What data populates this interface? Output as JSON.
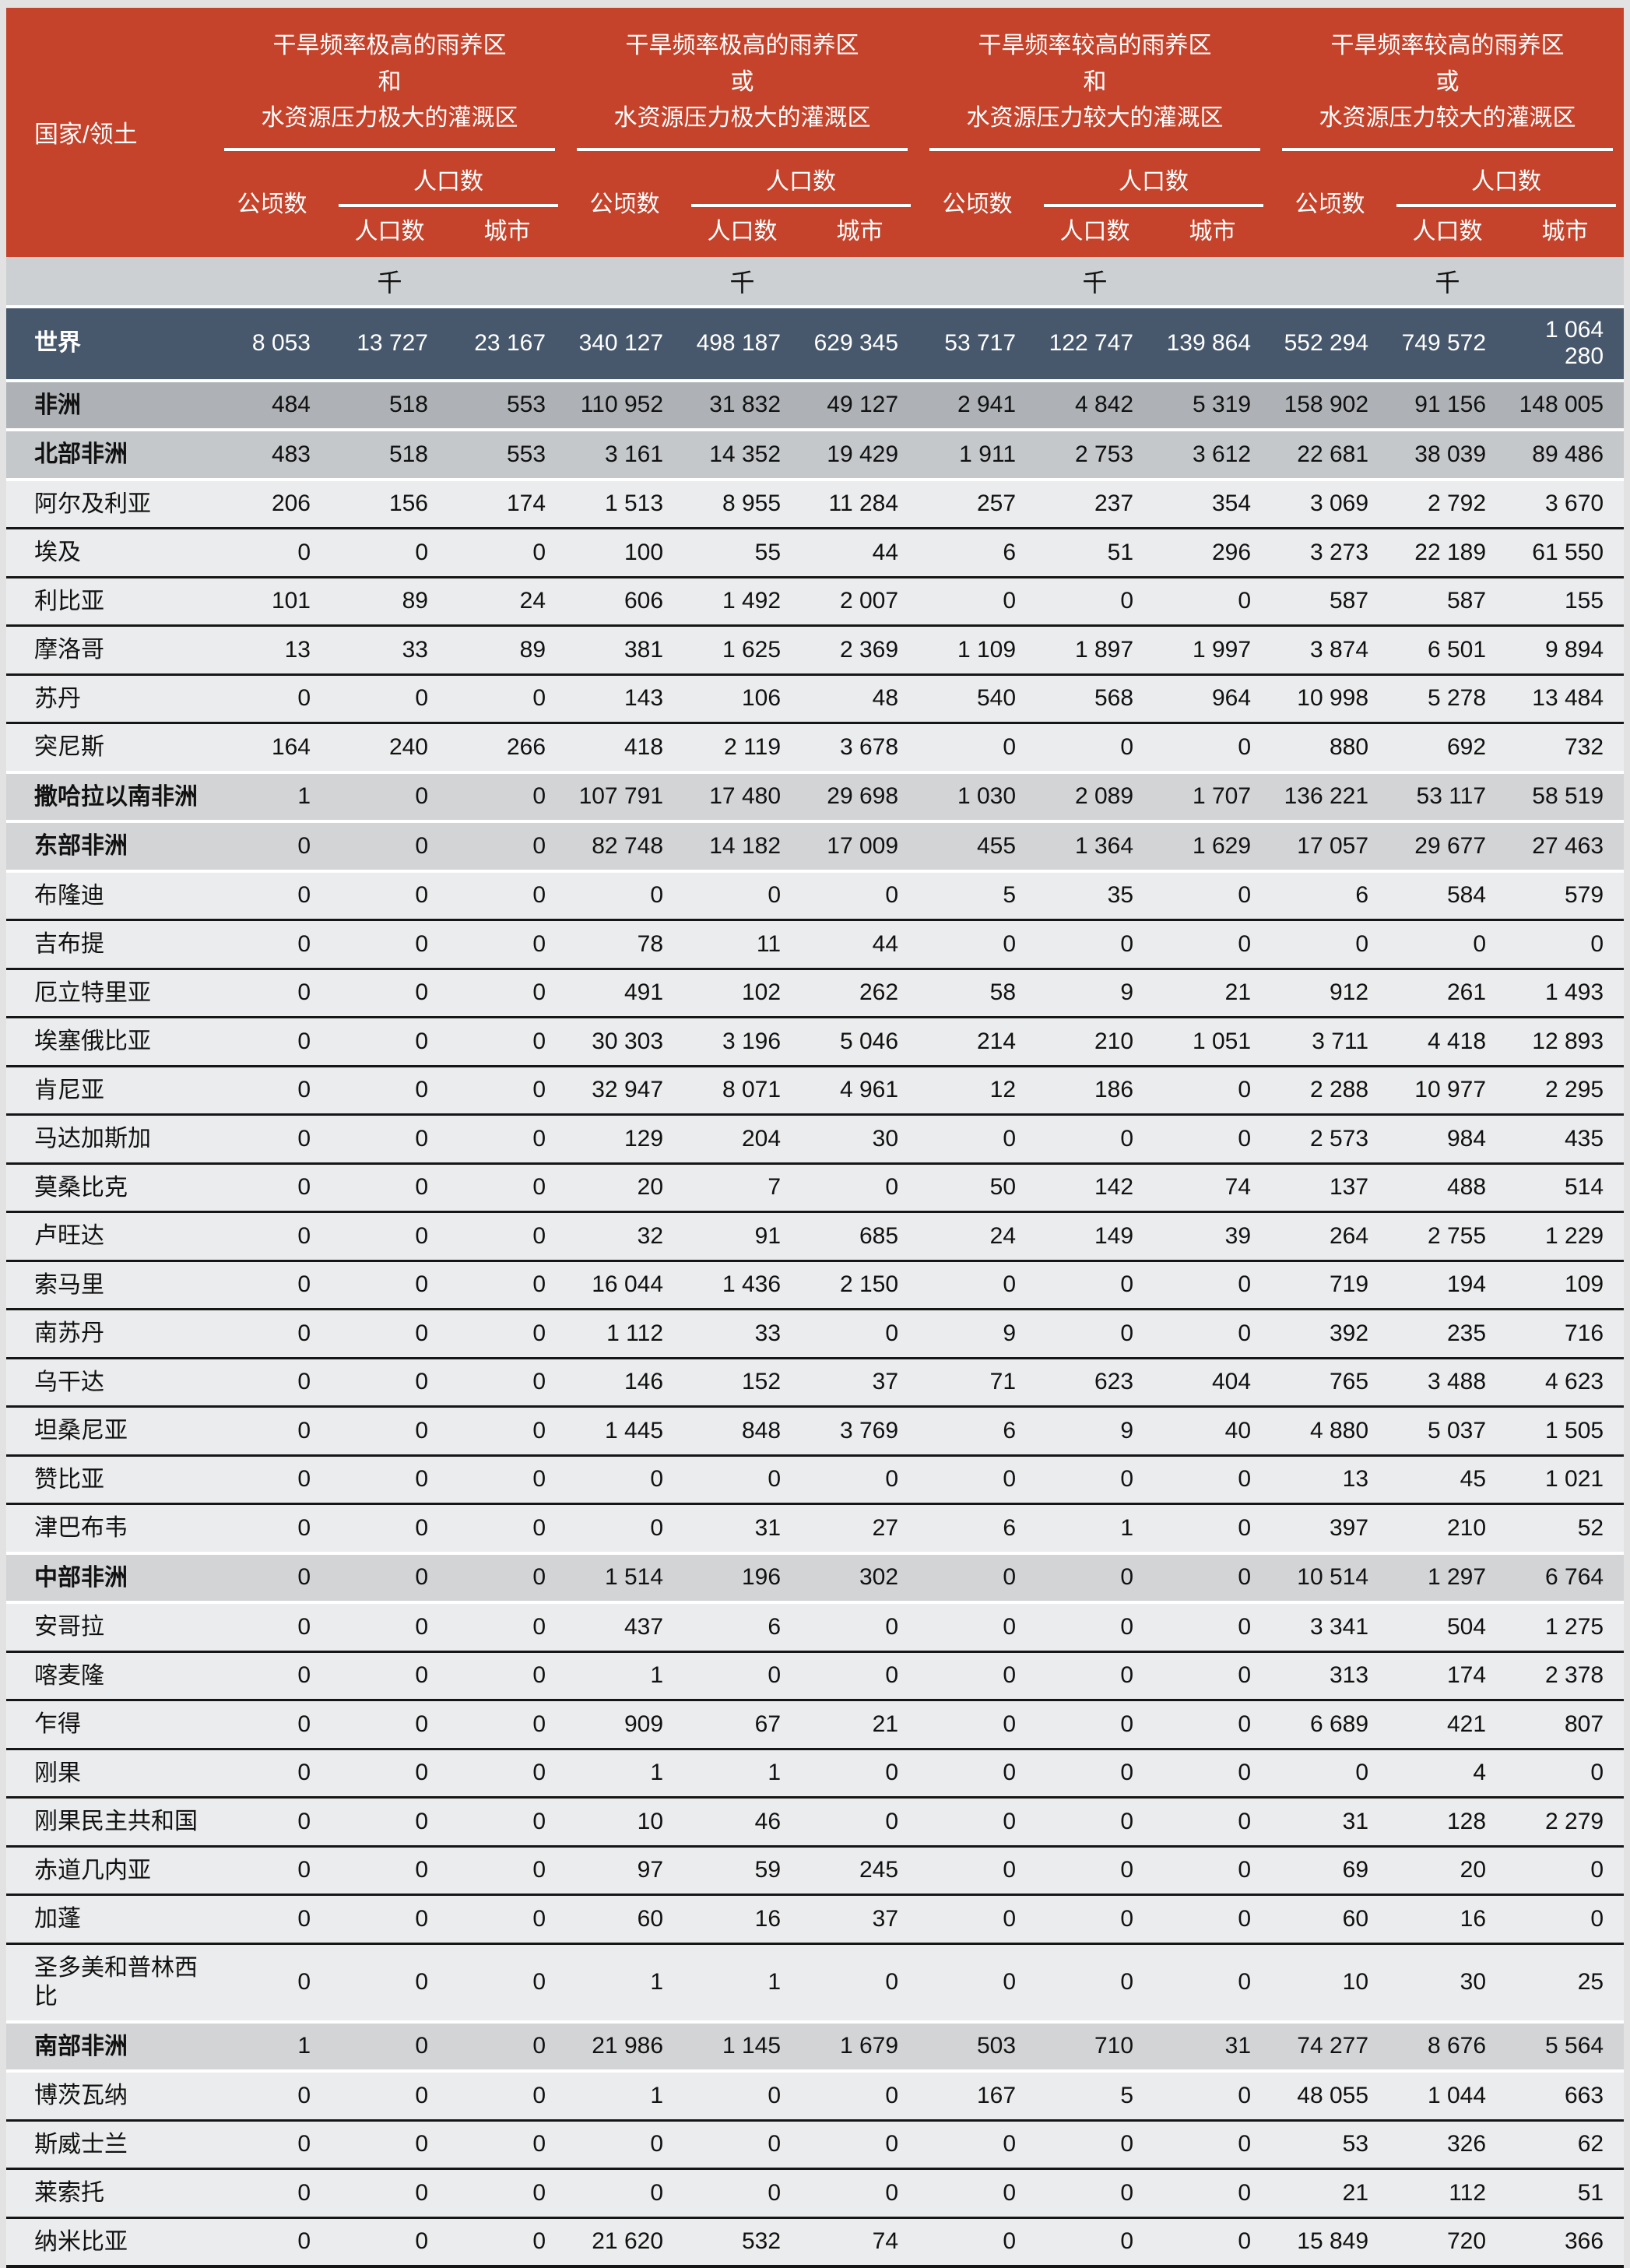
{
  "colors": {
    "header_bg": "#C5432B",
    "header_text": "#ffffff",
    "world_row_bg": "#47586C",
    "continent_row_bg": "#AEB2B6",
    "subcontinent_row_bg": "#C4C8CB",
    "region_row_bg": "#D2D4D6",
    "country_row_bg": "#EBECED",
    "unit_row_bg": "#CDD0D2",
    "rule_color": "#161616",
    "text_color": "#111111",
    "page_bg": "#e2e2e2"
  },
  "table": {
    "row_label_header": "国家/领土",
    "unit": "千",
    "groups": [
      {
        "line1": "干旱频率极高的雨养区",
        "connector": "和",
        "line2": "水资源压力极大的灌溉区"
      },
      {
        "line1": "干旱频率极高的雨养区",
        "connector": "或",
        "line2": "水资源压力极大的灌溉区"
      },
      {
        "line1": "干旱频率较高的雨养区",
        "connector": "和",
        "line2": "水资源压力较大的灌溉区"
      },
      {
        "line1": "干旱频率较高的雨养区",
        "connector": "或",
        "line2": "水资源压力较大的灌溉区"
      }
    ],
    "labels": {
      "hectares": "公顷数",
      "population": "人口数",
      "population_sub": "人口数",
      "urban": "城市"
    },
    "rows": [
      {
        "label": "世界",
        "type": "world",
        "values": [
          "8 053",
          "13 727",
          "23 167",
          "340 127",
          "498 187",
          "629 345",
          "53 717",
          "122 747",
          "139 864",
          "552 294",
          "749 572",
          "1 064 280"
        ]
      },
      {
        "label": "非洲",
        "type": "continent",
        "values": [
          "484",
          "518",
          "553",
          "110 952",
          "31 832",
          "49 127",
          "2 941",
          "4 842",
          "5 319",
          "158 902",
          "91 156",
          "148 005"
        ]
      },
      {
        "label": "北部非洲",
        "type": "subcontinent",
        "values": [
          "483",
          "518",
          "553",
          "3 161",
          "14 352",
          "19 429",
          "1 911",
          "2 753",
          "3 612",
          "22 681",
          "38 039",
          "89 486"
        ]
      },
      {
        "label": "阿尔及利亚",
        "type": "country",
        "values": [
          "206",
          "156",
          "174",
          "1 513",
          "8 955",
          "11 284",
          "257",
          "237",
          "354",
          "3 069",
          "2 792",
          "3 670"
        ]
      },
      {
        "label": "埃及",
        "type": "country",
        "values": [
          "0",
          "0",
          "0",
          "100",
          "55",
          "44",
          "6",
          "51",
          "296",
          "3 273",
          "22 189",
          "61 550"
        ]
      },
      {
        "label": "利比亚",
        "type": "country",
        "values": [
          "101",
          "89",
          "24",
          "606",
          "1 492",
          "2 007",
          "0",
          "0",
          "0",
          "587",
          "587",
          "155"
        ]
      },
      {
        "label": "摩洛哥",
        "type": "country",
        "values": [
          "13",
          "33",
          "89",
          "381",
          "1 625",
          "2 369",
          "1 109",
          "1 897",
          "1 997",
          "3 874",
          "6 501",
          "9 894"
        ]
      },
      {
        "label": "苏丹",
        "type": "country",
        "values": [
          "0",
          "0",
          "0",
          "143",
          "106",
          "48",
          "540",
          "568",
          "964",
          "10 998",
          "5 278",
          "13 484"
        ]
      },
      {
        "label": "突尼斯",
        "type": "country",
        "values": [
          "164",
          "240",
          "266",
          "418",
          "2 119",
          "3 678",
          "0",
          "0",
          "0",
          "880",
          "692",
          "732"
        ]
      },
      {
        "label": "撒哈拉以南非洲",
        "type": "region",
        "values": [
          "1",
          "0",
          "0",
          "107 791",
          "17 480",
          "29 698",
          "1 030",
          "2 089",
          "1 707",
          "136 221",
          "53 117",
          "58 519"
        ]
      },
      {
        "label": "东部非洲",
        "type": "region",
        "values": [
          "0",
          "0",
          "0",
          "82 748",
          "14 182",
          "17 009",
          "455",
          "1 364",
          "1 629",
          "17 057",
          "29 677",
          "27 463"
        ]
      },
      {
        "label": "布隆迪",
        "type": "country",
        "values": [
          "0",
          "0",
          "0",
          "0",
          "0",
          "0",
          "5",
          "35",
          "0",
          "6",
          "584",
          "579"
        ]
      },
      {
        "label": "吉布提",
        "type": "country",
        "values": [
          "0",
          "0",
          "0",
          "78",
          "11",
          "44",
          "0",
          "0",
          "0",
          "0",
          "0",
          "0"
        ]
      },
      {
        "label": "厄立特里亚",
        "type": "country",
        "values": [
          "0",
          "0",
          "0",
          "491",
          "102",
          "262",
          "58",
          "9",
          "21",
          "912",
          "261",
          "1 493"
        ]
      },
      {
        "label": "埃塞俄比亚",
        "type": "country",
        "values": [
          "0",
          "0",
          "0",
          "30 303",
          "3 196",
          "5 046",
          "214",
          "210",
          "1 051",
          "3 711",
          "4 418",
          "12 893"
        ]
      },
      {
        "label": "肯尼亚",
        "type": "country",
        "values": [
          "0",
          "0",
          "0",
          "32 947",
          "8 071",
          "4 961",
          "12",
          "186",
          "0",
          "2 288",
          "10 977",
          "2 295"
        ]
      },
      {
        "label": "马达加斯加",
        "type": "country",
        "values": [
          "0",
          "0",
          "0",
          "129",
          "204",
          "30",
          "0",
          "0",
          "0",
          "2 573",
          "984",
          "435"
        ]
      },
      {
        "label": "莫桑比克",
        "type": "country",
        "values": [
          "0",
          "0",
          "0",
          "20",
          "7",
          "0",
          "50",
          "142",
          "74",
          "137",
          "488",
          "514"
        ]
      },
      {
        "label": "卢旺达",
        "type": "country",
        "values": [
          "0",
          "0",
          "0",
          "32",
          "91",
          "685",
          "24",
          "149",
          "39",
          "264",
          "2 755",
          "1 229"
        ]
      },
      {
        "label": "索马里",
        "type": "country",
        "values": [
          "0",
          "0",
          "0",
          "16 044",
          "1 436",
          "2 150",
          "0",
          "0",
          "0",
          "719",
          "194",
          "109"
        ]
      },
      {
        "label": "南苏丹",
        "type": "country",
        "values": [
          "0",
          "0",
          "0",
          "1 112",
          "33",
          "0",
          "9",
          "0",
          "0",
          "392",
          "235",
          "716"
        ]
      },
      {
        "label": "乌干达",
        "type": "country",
        "values": [
          "0",
          "0",
          "0",
          "146",
          "152",
          "37",
          "71",
          "623",
          "404",
          "765",
          "3 488",
          "4 623"
        ]
      },
      {
        "label": "坦桑尼亚",
        "type": "country",
        "values": [
          "0",
          "0",
          "0",
          "1 445",
          "848",
          "3 769",
          "6",
          "9",
          "40",
          "4 880",
          "5 037",
          "1 505"
        ]
      },
      {
        "label": "赞比亚",
        "type": "country",
        "values": [
          "0",
          "0",
          "0",
          "0",
          "0",
          "0",
          "0",
          "0",
          "0",
          "13",
          "45",
          "1 021"
        ]
      },
      {
        "label": "津巴布韦",
        "type": "country",
        "values": [
          "0",
          "0",
          "0",
          "0",
          "31",
          "27",
          "6",
          "1",
          "0",
          "397",
          "210",
          "52"
        ]
      },
      {
        "label": "中部非洲",
        "type": "region",
        "values": [
          "0",
          "0",
          "0",
          "1 514",
          "196",
          "302",
          "0",
          "0",
          "0",
          "10 514",
          "1 297",
          "6 764"
        ]
      },
      {
        "label": "安哥拉",
        "type": "country",
        "values": [
          "0",
          "0",
          "0",
          "437",
          "6",
          "0",
          "0",
          "0",
          "0",
          "3 341",
          "504",
          "1 275"
        ]
      },
      {
        "label": "喀麦隆",
        "type": "country",
        "values": [
          "0",
          "0",
          "0",
          "1",
          "0",
          "0",
          "0",
          "0",
          "0",
          "313",
          "174",
          "2 378"
        ]
      },
      {
        "label": "乍得",
        "type": "country",
        "values": [
          "0",
          "0",
          "0",
          "909",
          "67",
          "21",
          "0",
          "0",
          "0",
          "6 689",
          "421",
          "807"
        ]
      },
      {
        "label": "刚果",
        "type": "country",
        "values": [
          "0",
          "0",
          "0",
          "1",
          "1",
          "0",
          "0",
          "0",
          "0",
          "0",
          "4",
          "0"
        ]
      },
      {
        "label": "刚果民主共和国",
        "type": "country",
        "values": [
          "0",
          "0",
          "0",
          "10",
          "46",
          "0",
          "0",
          "0",
          "0",
          "31",
          "128",
          "2 279"
        ]
      },
      {
        "label": "赤道几内亚",
        "type": "country",
        "values": [
          "0",
          "0",
          "0",
          "97",
          "59",
          "245",
          "0",
          "0",
          "0",
          "69",
          "20",
          "0"
        ]
      },
      {
        "label": "加蓬",
        "type": "country",
        "values": [
          "0",
          "0",
          "0",
          "60",
          "16",
          "37",
          "0",
          "0",
          "0",
          "60",
          "16",
          "0"
        ]
      },
      {
        "label": "圣多美和普林西比",
        "type": "country",
        "values": [
          "0",
          "0",
          "0",
          "1",
          "1",
          "0",
          "0",
          "0",
          "0",
          "10",
          "30",
          "25"
        ]
      },
      {
        "label": "南部非洲",
        "type": "region",
        "values": [
          "1",
          "0",
          "0",
          "21 986",
          "1 145",
          "1 679",
          "503",
          "710",
          "31",
          "74 277",
          "8 676",
          "5 564"
        ]
      },
      {
        "label": "博茨瓦纳",
        "type": "country",
        "values": [
          "0",
          "0",
          "0",
          "1",
          "0",
          "0",
          "167",
          "5",
          "0",
          "48 055",
          "1 044",
          "663"
        ]
      },
      {
        "label": "斯威士兰",
        "type": "country",
        "values": [
          "0",
          "0",
          "0",
          "0",
          "0",
          "0",
          "0",
          "0",
          "0",
          "53",
          "326",
          "62"
        ]
      },
      {
        "label": "莱索托",
        "type": "country",
        "values": [
          "0",
          "0",
          "0",
          "0",
          "0",
          "0",
          "0",
          "0",
          "0",
          "21",
          "112",
          "51"
        ]
      },
      {
        "label": "纳米比亚",
        "type": "country",
        "values": [
          "0",
          "0",
          "0",
          "21 620",
          "532",
          "74",
          "0",
          "0",
          "0",
          "15 849",
          "720",
          "366"
        ]
      }
    ]
  }
}
